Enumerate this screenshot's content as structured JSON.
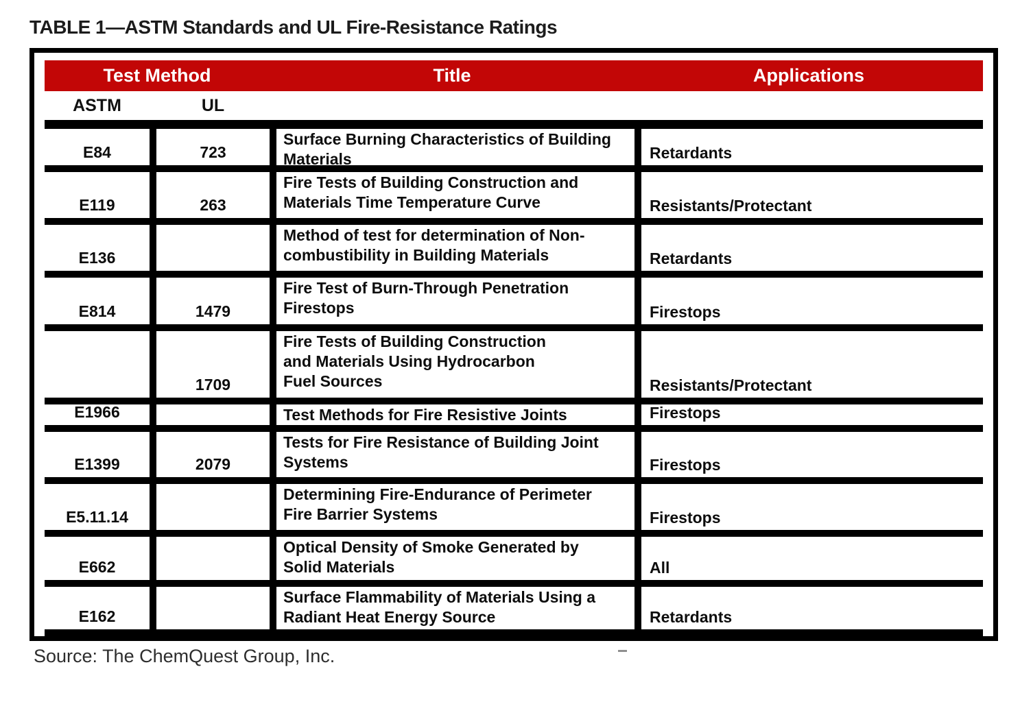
{
  "page": {
    "table_label": "TABLE 1—ASTM Standards and UL Fire-Resistance Ratings",
    "source": "Source: The ChemQuest Group, Inc."
  },
  "table": {
    "header": {
      "test_method": "Test Method",
      "title": "Title",
      "applications": "Applications"
    },
    "subheader": {
      "astm": "ASTM",
      "ul": "UL"
    },
    "colors": {
      "header_bg": "#c20606",
      "header_text": "#ffffff",
      "grid": "#000000"
    },
    "columns": [
      "ASTM",
      "UL",
      "Title",
      "Applications"
    ],
    "rows": [
      {
        "astm": "E84",
        "ul": "723",
        "title_lines": [
          "Surface Burning Characteristics of Building",
          "Materials"
        ],
        "application": "Retardants"
      },
      {
        "astm": "E119",
        "ul": "263",
        "title_lines": [
          "Fire Tests of Building Construction and",
          "Materials Time Temperature Curve"
        ],
        "application": "Resistants/Protectant"
      },
      {
        "astm": "E136",
        "ul": "",
        "title_lines": [
          "Method of test for determination of Non-",
          "combustibility in Building Materials"
        ],
        "application": "Retardants"
      },
      {
        "astm": "E814",
        "ul": "1479",
        "title_lines": [
          "Fire Test of Burn-Through Penetration",
          "Firestops"
        ],
        "application": "Firestops"
      },
      {
        "astm": "",
        "ul": "1709",
        "title_lines": [
          "Fire Tests of Building Construction",
          "and Materials Using Hydrocarbon",
          "Fuel Sources"
        ],
        "application": "Resistants/Protectant"
      },
      {
        "astm": "E1966",
        "ul": "",
        "title_lines": [
          "Test Methods for Fire Resistive Joints"
        ],
        "application": "Firestops"
      },
      {
        "astm": "E1399",
        "ul": "2079",
        "title_lines": [
          "Tests for Fire Resistance of Building Joint",
          "Systems"
        ],
        "application": "Firestops"
      },
      {
        "astm": "E5.11.14",
        "ul": "",
        "title_lines": [
          "Determining Fire-Endurance of Perimeter",
          "Fire Barrier Systems"
        ],
        "application": "Firestops"
      },
      {
        "astm": "E662",
        "ul": "",
        "title_lines": [
          "Optical Density of Smoke Generated by",
          "Solid Materials"
        ],
        "application": "All"
      },
      {
        "astm": "E162",
        "ul": "",
        "title_lines": [
          "Surface Flammability of Materials Using a",
          "Radiant Heat Energy Source"
        ],
        "application": "Retardants"
      }
    ]
  }
}
